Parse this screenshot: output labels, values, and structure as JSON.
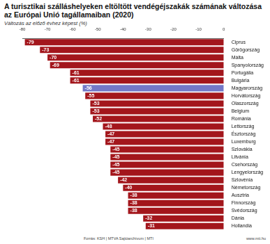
{
  "chart_data": {
    "type": "bar",
    "title": "A turisztikai szálláshelyeken eltöltött vendégéjszakák számának változása az Európai Unió tagállamaiban (2020)",
    "subtitle": "Változás az előző évhez képest (%)",
    "source": "Forrás: KSH | MTVA Sajtóarchívum | MTI",
    "website": "www.mti.hu",
    "categories": [
      "Ciprus",
      "Görögország",
      "Málta",
      "Spanyolország",
      "Portugália",
      "Bulgária",
      "Magyarország",
      "Horvátország",
      "Olaszország",
      "Belgium",
      "Románia",
      "Lettország",
      "Észtország",
      "Luxemburg",
      "Szlovákia",
      "Litvánia",
      "Csehország",
      "Lengyelország",
      "Szlovénia",
      "Németország",
      "Ausztria",
      "Finnország",
      "Svédország",
      "Dánia",
      "Hollandia"
    ],
    "values": [
      -79,
      -73,
      -70,
      -69,
      -61,
      -61,
      -56,
      -55,
      -53,
      -53,
      -52,
      -48,
      -47,
      -47,
      -45,
      -45,
      -45,
      -45,
      -42,
      -40,
      -38,
      -38,
      -38,
      -32,
      -31
    ],
    "colors": [
      "#a3161c",
      "#a3161c",
      "#a3161c",
      "#a3161c",
      "#a3161c",
      "#a3161c",
      "#7378c8",
      "#a3161c",
      "#a3161c",
      "#a3161c",
      "#a3161c",
      "#a3161c",
      "#a3161c",
      "#a3161c",
      "#a3161c",
      "#a3161c",
      "#a3161c",
      "#a3161c",
      "#a3161c",
      "#a3161c",
      "#a3161c",
      "#a3161c",
      "#a3161c",
      "#a3161c",
      "#a3161c"
    ],
    "orientation": "horizontal",
    "xlim": [
      -80,
      0
    ],
    "xticks": [
      -80,
      -70,
      -60,
      -50,
      -40,
      -30,
      -20,
      -10,
      0
    ],
    "grid": false,
    "data_labels": true
  }
}
